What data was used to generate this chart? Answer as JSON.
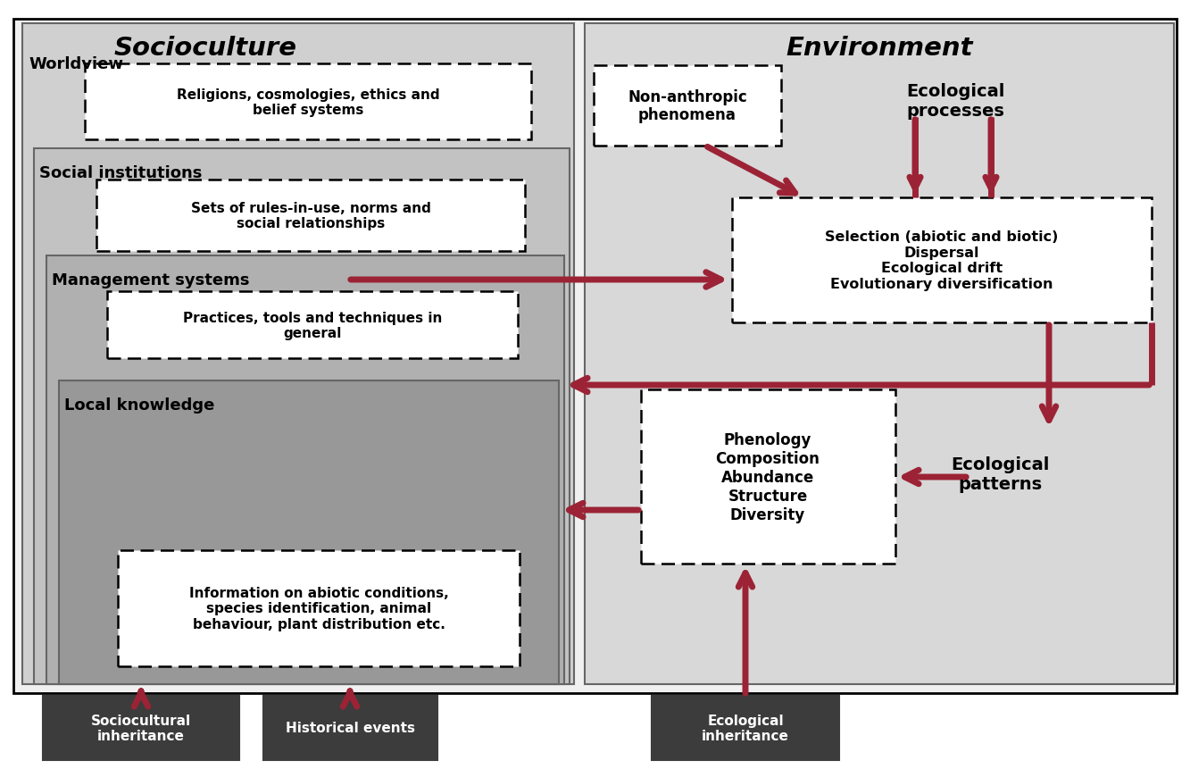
{
  "fig_width": 13.33,
  "fig_height": 8.62,
  "dpi": 100,
  "bg_color": "#ffffff",
  "arrow_color": "#9b2335",
  "title_left": "Socioculture",
  "title_right": "Environment",
  "colors": {
    "outer_frame": "#e8e8e8",
    "socio_outer": "#d0d0d0",
    "social_inst": "#c2c2c2",
    "mgmt": "#b0b0b0",
    "local": "#989898",
    "env_bg": "#d8d8d8",
    "white": "#ffffff",
    "dark_box": "#3c3c3c"
  },
  "labels": {
    "worldview": "Worldview",
    "religions": "Religions, cosmologies, ethics and\nbelief systems",
    "social_inst": "Social institutions",
    "rules": "Sets of rules-in-use, norms and\nsocial relationships",
    "mgmt_sys": "Management systems",
    "practices": "Practices, tools and techniques in\ngeneral",
    "local_know": "Local knowledge",
    "info": "Information on abiotic conditions,\nspecies identification, animal\nbehaviour, plant distribution etc.",
    "non_anthropic": "Non-anthropic\nphenomena",
    "eco_processes": "Ecological\nprocesses",
    "selection": "Selection (abiotic and biotic)\nDispersal\nEcological drift\nEvolutionary diversification",
    "phenology": "Phenology\nComposition\nAbundance\nStructure\nDiversity",
    "eco_patterns": "Ecological\npatterns",
    "socio_inherit": "Sociocultural\ninheritance",
    "hist_events": "Historical events",
    "eco_inherit": "Ecological\ninheritance"
  }
}
